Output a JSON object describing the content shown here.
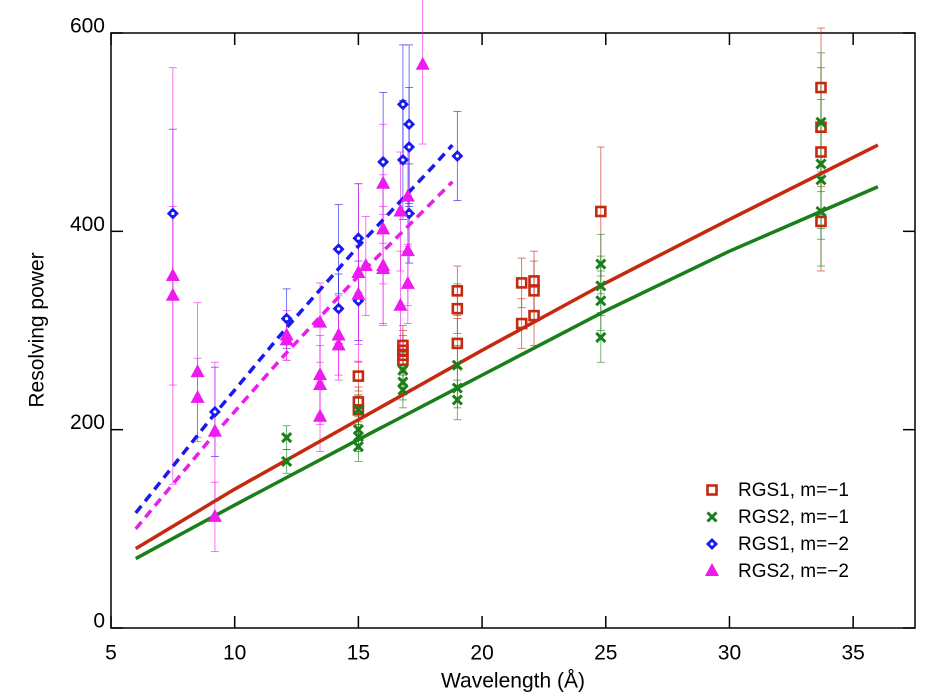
{
  "chart_data": {
    "type": "scatter",
    "xlabel": "Wavelength (Å)",
    "ylabel": "Resolving power",
    "xlim": [
      5,
      37.5
    ],
    "ylim": [
      0,
      600
    ],
    "xticks": [
      5,
      10,
      15,
      20,
      25,
      30,
      35
    ],
    "yticks": [
      0,
      200,
      400,
      600
    ],
    "legend": "lower right",
    "series": [
      {
        "name": "RGS1, m=−1",
        "color": "#c42a10",
        "marker": "square",
        "x": [
          15,
          15,
          15,
          16.8,
          16.8,
          16.8,
          16.8,
          19,
          19,
          19,
          21.6,
          21.6,
          22.1,
          22.1,
          22.1,
          24.8,
          33.7,
          33.7,
          33.7,
          33.7
        ],
        "values": [
          254,
          228,
          220,
          285,
          280,
          275,
          270,
          340,
          322,
          287,
          348,
          307,
          350,
          340,
          315,
          420,
          545,
          505,
          480,
          410
        ],
        "errors": [
          15,
          15,
          15,
          20,
          20,
          20,
          20,
          25,
          25,
          25,
          25,
          25,
          30,
          30,
          30,
          65,
          60,
          60,
          60,
          50
        ]
      },
      {
        "name": "RGS2, m=−1",
        "color": "#1a7f1a",
        "marker": "cross",
        "x": [
          12.1,
          12.1,
          15,
          15,
          15,
          15,
          16.8,
          16.8,
          16.8,
          19,
          19,
          19,
          24.8,
          24.8,
          24.8,
          24.8,
          33.7,
          33.7,
          33.7,
          33.7
        ],
        "values": [
          192,
          168,
          220,
          200,
          193,
          183,
          260,
          248,
          240,
          265,
          242,
          230,
          367,
          345,
          330,
          293,
          510,
          468,
          452,
          420
        ],
        "errors": [
          12,
          12,
          15,
          15,
          15,
          15,
          18,
          18,
          18,
          20,
          20,
          20,
          30,
          30,
          30,
          25,
          70,
          65,
          60,
          55
        ]
      },
      {
        "name": "RGS1, m=−2",
        "color": "#1a1aee",
        "marker": "diamond",
        "x": [
          7.5,
          9.2,
          12.1,
          14.2,
          14.2,
          15,
          15,
          16,
          16.8,
          16.8,
          17.05,
          17.05,
          17.05,
          19
        ],
        "values": [
          418,
          218,
          312,
          382,
          322,
          393,
          330,
          470,
          528,
          472,
          508,
          485,
          418,
          476
        ],
        "errors": [
          85,
          45,
          30,
          45,
          35,
          55,
          40,
          70,
          60,
          60,
          80,
          60,
          50,
          45
        ]
      },
      {
        "name": "RGS2, m=−2",
        "color": "#ee1aee",
        "marker": "triangle",
        "x": [
          7.5,
          7.5,
          8.5,
          8.5,
          9.2,
          9.2,
          12.1,
          12.1,
          13.45,
          13.45,
          13.45,
          13.45,
          14.2,
          14.2,
          15,
          15,
          15.3,
          16,
          16,
          16,
          16,
          16.7,
          16.7,
          17,
          17,
          17,
          17.6
        ],
        "values": [
          355,
          335,
          258,
          232,
          198,
          112,
          295,
          290,
          308,
          255,
          245,
          213,
          295,
          285,
          358,
          336,
          365,
          448,
          402,
          365,
          362,
          420,
          325,
          435,
          380,
          347,
          568
        ],
        "errors": [
          210,
          90,
          70,
          40,
          70,
          35,
          25,
          20,
          40,
          40,
          40,
          35,
          40,
          35,
          90,
          50,
          50,
          60,
          55,
          60,
          55,
          60,
          55,
          50,
          55,
          40,
          80
        ]
      }
    ],
    "curves": [
      {
        "color": "#c42a10",
        "dashed": false,
        "x": [
          6,
          10,
          15,
          20,
          25,
          30,
          36
        ],
        "values": [
          80,
          140,
          210,
          280,
          348,
          412,
          487
        ]
      },
      {
        "color": "#1a7f1a",
        "dashed": false,
        "x": [
          6,
          10,
          15,
          20,
          25,
          30,
          36
        ],
        "values": [
          70,
          124,
          190,
          255,
          320,
          380,
          445
        ]
      },
      {
        "color": "#1a1aee",
        "dashed": true,
        "x": [
          6,
          9,
          12,
          15,
          18,
          18.8
        ],
        "values": [
          116,
          210,
          300,
          385,
          465,
          487
        ]
      },
      {
        "color": "#ee1aee",
        "dashed": true,
        "x": [
          6,
          9,
          12,
          15,
          18,
          18.8
        ],
        "values": [
          100,
          190,
          275,
          355,
          430,
          450
        ]
      }
    ]
  }
}
